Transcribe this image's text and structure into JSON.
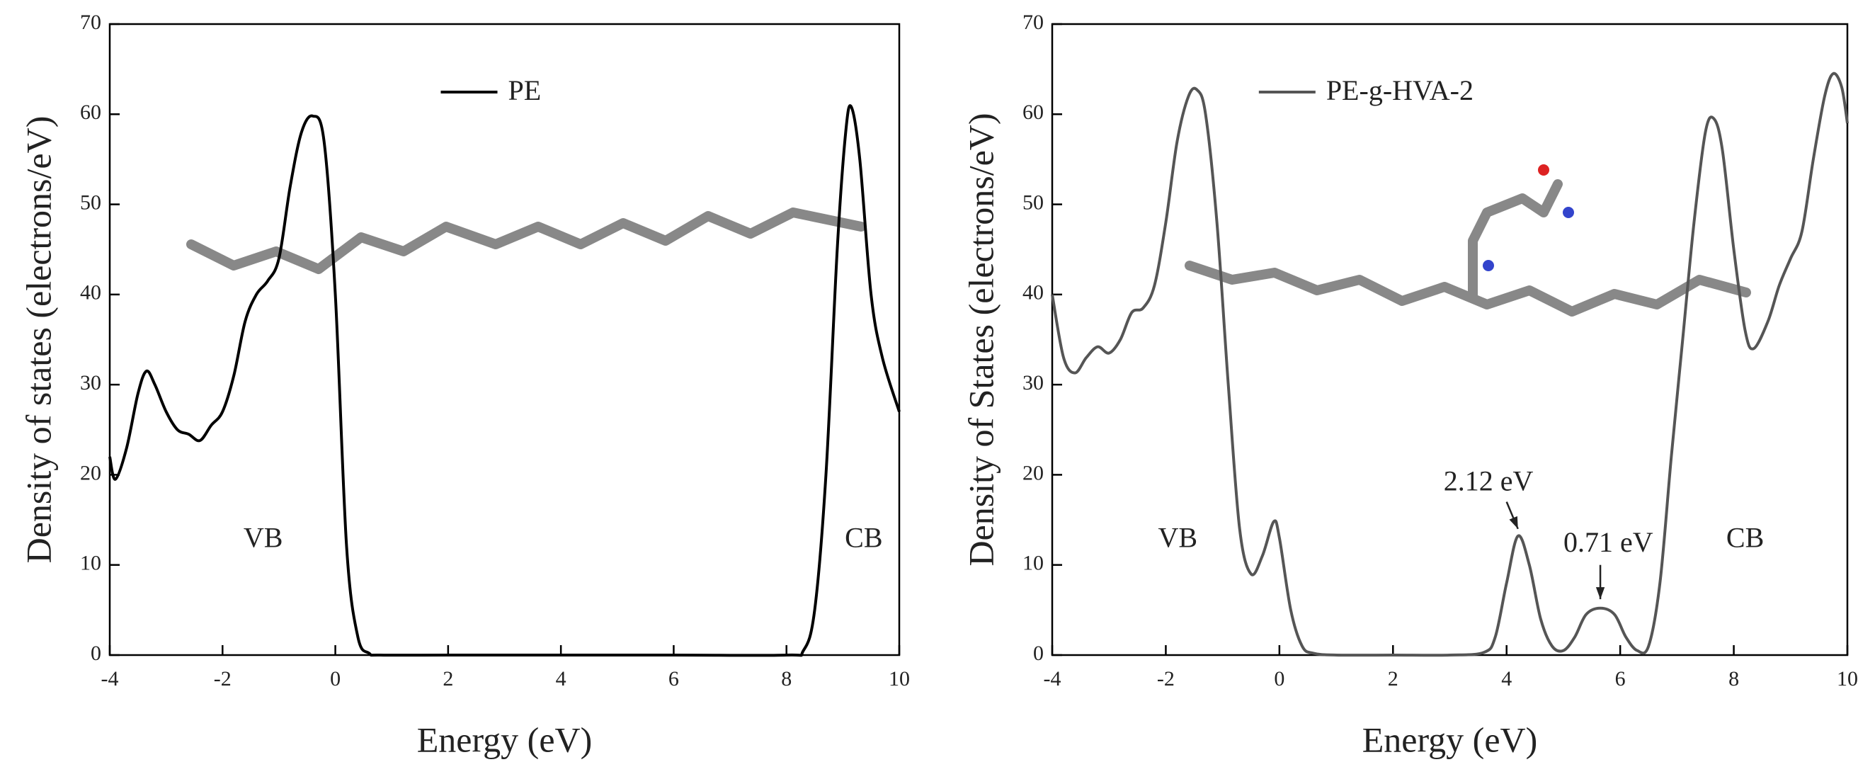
{
  "chart_data": [
    {
      "type": "line",
      "ylabel": "Density of states (electrons/eV)",
      "xlabel": "Energy (eV)",
      "xlim": [
        -4,
        10
      ],
      "ylim": [
        0,
        70
      ],
      "xticks": [
        -4,
        -2,
        0,
        2,
        4,
        6,
        8,
        10
      ],
      "yticks": [
        0,
        10,
        20,
        30,
        40,
        50,
        60,
        70
      ],
      "legend": "top",
      "x": [
        -4,
        -3.9,
        -3.7,
        -3.5,
        -3.35,
        -3.2,
        -3.0,
        -2.8,
        -2.6,
        -2.4,
        -2.2,
        -2.0,
        -1.8,
        -1.6,
        -1.4,
        -1.2,
        -1.0,
        -0.8,
        -0.6,
        -0.4,
        -0.2,
        0.0,
        0.2,
        0.4,
        0.6,
        0.8,
        2,
        4,
        6,
        8,
        8.3,
        8.5,
        8.7,
        8.9,
        9.05,
        9.15,
        9.3,
        9.5,
        9.7,
        10
      ],
      "series": [
        {
          "name": "PE",
          "color": "#000000",
          "values": [
            22,
            19.5,
            23,
            29,
            31.5,
            30,
            27,
            25,
            24.5,
            23.8,
            25.5,
            27,
            31,
            37,
            40,
            41.5,
            44,
            52,
            58,
            59.8,
            57,
            40,
            12,
            2,
            0.2,
            0,
            0,
            0,
            0,
            0,
            0.5,
            5,
            20,
            45,
            58,
            60.8,
            55,
            40,
            33,
            27
          ]
        }
      ],
      "annotations": [
        "VB",
        "CB"
      ]
    },
    {
      "type": "line",
      "ylabel": "Density of States (electrons/eV)",
      "xlabel": "Energy (eV)",
      "xlim": [
        -4,
        10
      ],
      "ylim": [
        0,
        70
      ],
      "xticks": [
        -4,
        -2,
        0,
        2,
        4,
        6,
        8,
        10
      ],
      "yticks": [
        0,
        10,
        20,
        30,
        40,
        50,
        60,
        70
      ],
      "legend": "top",
      "x": [
        -4,
        -3.8,
        -3.6,
        -3.4,
        -3.2,
        -3.0,
        -2.8,
        -2.6,
        -2.4,
        -2.2,
        -2.0,
        -1.8,
        -1.6,
        -1.45,
        -1.3,
        -1.1,
        -0.9,
        -0.7,
        -0.5,
        -0.3,
        -0.1,
        0.0,
        0.2,
        0.4,
        0.6,
        1,
        2,
        3,
        3.6,
        3.8,
        4.0,
        4.2,
        4.4,
        4.6,
        4.8,
        5.0,
        5.2,
        5.4,
        5.65,
        5.9,
        6.1,
        6.3,
        6.5,
        6.7,
        6.9,
        7.1,
        7.3,
        7.5,
        7.65,
        7.8,
        8.0,
        8.2,
        8.35,
        8.6,
        8.8,
        9.0,
        9.2,
        9.4,
        9.6,
        9.75,
        9.9,
        10
      ],
      "series": [
        {
          "name": "PE-g-HVA-2",
          "color": "#555555",
          "values": [
            40,
            33,
            31.3,
            33,
            34.2,
            33.5,
            35,
            38,
            38.5,
            41,
            48,
            57,
            62,
            62.7,
            60,
            48,
            30,
            14,
            9,
            11,
            14.8,
            13,
            5,
            1,
            0.2,
            0,
            0,
            0,
            0.3,
            2,
            8,
            13.2,
            10,
            4,
            1,
            0.5,
            2,
            4.5,
            5.2,
            4.5,
            2,
            0.5,
            1,
            8,
            22,
            35,
            48,
            58,
            59.5,
            56,
            45,
            36,
            34,
            37,
            41,
            44,
            47,
            55,
            62,
            64.5,
            63,
            59
          ]
        }
      ],
      "annotations": [
        "VB",
        "CB",
        "2.12 eV",
        "0.71 eV"
      ]
    }
  ]
}
